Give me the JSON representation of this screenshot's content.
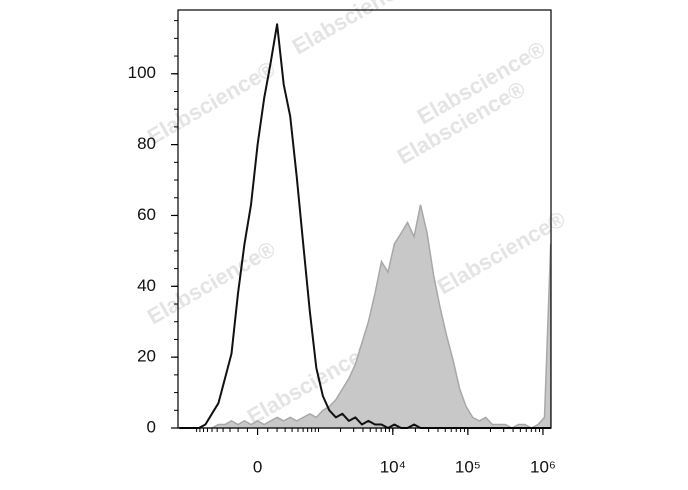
{
  "chart_data": {
    "type": "histogram-overlay",
    "watermark": "Elabscience®",
    "xscale": "biexponential",
    "xlim": [
      -1800,
      1280000
    ],
    "xticks": [
      0,
      {
        "value": 10000,
        "label": "10⁴"
      },
      {
        "value": 100000,
        "label": "10⁵"
      },
      {
        "value": 1000000,
        "label": "10⁶"
      }
    ],
    "ylim": [
      0,
      118
    ],
    "yticks": [
      0,
      20,
      40,
      60,
      80,
      100
    ],
    "x": [
      -1730,
      -1410,
      -1150,
      -930,
      -751,
      -602,
      -477,
      -371,
      -281,
      -201,
      -130,
      -64,
      0,
      64,
      130,
      201,
      281,
      371,
      477,
      602,
      751,
      930,
      1150,
      1410,
      1730,
      2120,
      2590,
      3170,
      3870,
      4730,
      5780,
      7060,
      8620,
      10500,
      12900,
      15700,
      19200,
      23400,
      28600,
      35000,
      42700,
      52200,
      63700,
      77900,
      95100,
      116000,
      142000,
      173000,
      212000,
      258000,
      316000,
      386000,
      471000,
      575000,
      702000,
      858000,
      1050000,
      1270000
    ],
    "series": [
      {
        "color": "#c8c8c8",
        "edge": "#a8a8a8",
        "fill": true,
        "values": [
          0,
          0,
          0,
          0,
          0,
          0,
          1,
          1,
          2,
          1,
          2,
          1,
          2,
          1,
          2,
          3,
          2,
          3,
          2,
          3,
          4,
          3,
          5,
          6,
          8,
          11,
          14,
          18,
          24,
          30,
          38,
          47,
          44,
          52,
          55,
          58,
          54,
          63,
          55,
          43,
          34,
          26,
          19,
          11,
          6,
          3,
          2,
          3,
          1,
          1,
          1,
          0,
          1,
          1,
          0,
          1,
          3,
          52
        ]
      },
      {
        "color": "#111111",
        "fill": false,
        "values": [
          0,
          0,
          0,
          0,
          1,
          4,
          7,
          14,
          21,
          38,
          52,
          63,
          80,
          93,
          103,
          114,
          97,
          88,
          71,
          52,
          33,
          17,
          9,
          5,
          3,
          4,
          2,
          3,
          1,
          2,
          1,
          1,
          0,
          1,
          0,
          0,
          1,
          0,
          0,
          0,
          0,
          0,
          0,
          0,
          0,
          0,
          0,
          0,
          0,
          0,
          0,
          0,
          0,
          0,
          0,
          0,
          0,
          0
        ]
      }
    ]
  }
}
